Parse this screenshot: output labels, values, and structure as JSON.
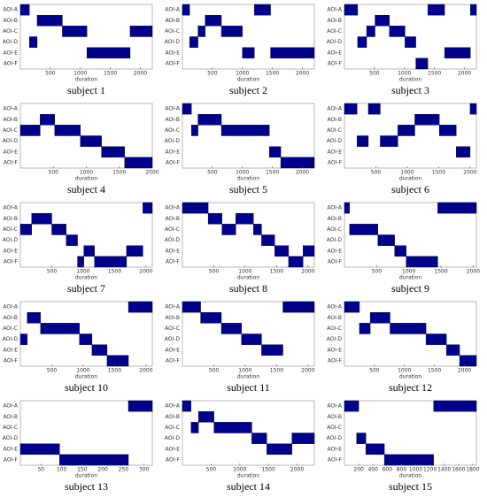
{
  "chart_data": [
    {
      "type": "timeline",
      "title": "subject 1",
      "xlabel": "duration",
      "color": "#00008b",
      "categories": [
        "AOI-A",
        "AOI-B",
        "AOI-C",
        "AOI-D",
        "AOI-E",
        "AOI-F"
      ],
      "xlim": [
        0,
        2200
      ],
      "xticks": [
        500,
        1000,
        1500,
        2000
      ],
      "intervals": [
        [
          [
            0,
            150
          ]
        ],
        [
          [
            280,
            700
          ]
        ],
        [
          [
            700,
            1110
          ],
          [
            1830,
            2200
          ]
        ],
        [
          [
            150,
            280
          ]
        ],
        [
          [
            1110,
            1830
          ]
        ],
        []
      ]
    },
    {
      "type": "timeline",
      "title": "subject 2",
      "xlabel": "duration",
      "color": "#00008b",
      "categories": [
        "AOI-A",
        "AOI-B",
        "AOI-C",
        "AOI-D",
        "AOI-E",
        "AOI-F"
      ],
      "xlim": [
        0,
        2200
      ],
      "xticks": [
        500,
        1000,
        1500,
        2000
      ],
      "intervals": [
        [
          [
            0,
            120
          ],
          [
            1200,
            1470
          ]
        ],
        [
          [
            380,
            650
          ]
        ],
        [
          [
            260,
            380
          ],
          [
            650,
            1000
          ]
        ],
        [
          [
            120,
            260
          ]
        ],
        [
          [
            1000,
            1200
          ],
          [
            1470,
            2200
          ]
        ],
        []
      ]
    },
    {
      "type": "timeline",
      "title": "subject 3",
      "xlabel": "duration",
      "color": "#00008b",
      "categories": [
        "AOI-A",
        "AOI-B",
        "AOI-C",
        "AOI-D",
        "AOI-E",
        "AOI-F"
      ],
      "xlim": [
        0,
        2200
      ],
      "xticks": [
        500,
        1000,
        1500,
        2000
      ],
      "intervals": [
        [
          [
            0,
            220
          ],
          [
            1390,
            1670
          ],
          [
            2100,
            2200
          ]
        ],
        [
          [
            510,
            750
          ]
        ],
        [
          [
            370,
            510
          ],
          [
            750,
            1010
          ]
        ],
        [
          [
            220,
            370
          ],
          [
            1010,
            1190
          ]
        ],
        [
          [
            1670,
            2100
          ]
        ],
        [
          [
            1190,
            1390
          ]
        ]
      ]
    },
    {
      "type": "timeline",
      "title": "subject 4",
      "xlabel": "duration",
      "color": "#00008b",
      "categories": [
        "AOI-A",
        "AOI-B",
        "AOI-C",
        "AOI-D",
        "AOI-E",
        "AOI-F"
      ],
      "xlim": [
        0,
        2000
      ],
      "xticks": [
        500,
        1000,
        1500,
        2000
      ],
      "intervals": [
        [],
        [
          [
            300,
            520
          ]
        ],
        [
          [
            0,
            300
          ],
          [
            520,
            910
          ]
        ],
        [
          [
            910,
            1230
          ]
        ],
        [
          [
            1230,
            1580
          ]
        ],
        [
          [
            1580,
            2000
          ]
        ]
      ]
    },
    {
      "type": "timeline",
      "title": "subject 5",
      "xlabel": "duration",
      "color": "#00008b",
      "categories": [
        "AOI-A",
        "AOI-B",
        "AOI-C",
        "AOI-D",
        "AOI-E",
        "AOI-F"
      ],
      "xlim": [
        0,
        2200
      ],
      "xticks": [
        500,
        1000,
        1500,
        2000
      ],
      "intervals": [
        [
          [
            0,
            150
          ]
        ],
        [
          [
            260,
            650
          ]
        ],
        [
          [
            150,
            260
          ],
          [
            650,
            1450
          ]
        ],
        [],
        [
          [
            1450,
            1640
          ]
        ],
        [
          [
            1640,
            2200
          ]
        ]
      ]
    },
    {
      "type": "timeline",
      "title": "subject 6",
      "xlabel": "duration",
      "color": "#00008b",
      "categories": [
        "AOI-A",
        "AOI-B",
        "AOI-C",
        "AOI-D",
        "AOI-E",
        "AOI-F"
      ],
      "xlim": [
        0,
        2100
      ],
      "xticks": [
        500,
        1000,
        1500,
        2000
      ],
      "intervals": [
        [
          [
            0,
            200
          ],
          [
            380,
            570
          ],
          [
            2000,
            2100
          ]
        ],
        [
          [
            1120,
            1510
          ]
        ],
        [
          [
            850,
            1120
          ],
          [
            1510,
            1780
          ]
        ],
        [
          [
            200,
            380
          ],
          [
            570,
            850
          ]
        ],
        [
          [
            1780,
            2000
          ]
        ],
        []
      ]
    },
    {
      "type": "timeline",
      "title": "subject 7",
      "xlabel": "duration",
      "color": "#00008b",
      "categories": [
        "AOI-A",
        "AOI-B",
        "AOI-C",
        "AOI-D",
        "AOI-E",
        "AOI-F"
      ],
      "xlim": [
        0,
        2100
      ],
      "xticks": [
        500,
        1000,
        1500,
        2000
      ],
      "intervals": [
        [
          [
            1950,
            2100
          ]
        ],
        [
          [
            180,
            500
          ]
        ],
        [
          [
            0,
            180
          ],
          [
            500,
            730
          ]
        ],
        [
          [
            730,
            910
          ]
        ],
        [
          [
            1010,
            1180
          ],
          [
            1690,
            1950
          ]
        ],
        [
          [
            910,
            1010
          ],
          [
            1180,
            1690
          ]
        ]
      ]
    },
    {
      "type": "timeline",
      "title": "subject 8",
      "xlabel": "duration",
      "color": "#00008b",
      "categories": [
        "AOI-A",
        "AOI-B",
        "AOI-C",
        "AOI-D",
        "AOI-E",
        "AOI-F"
      ],
      "xlim": [
        0,
        2100
      ],
      "xticks": [
        500,
        1000,
        1500,
        2000
      ],
      "intervals": [
        [
          [
            0,
            410
          ]
        ],
        [
          [
            410,
            630
          ],
          [
            850,
            1130
          ]
        ],
        [
          [
            630,
            850
          ],
          [
            1130,
            1260
          ]
        ],
        [
          [
            1260,
            1470
          ]
        ],
        [
          [
            1470,
            1690
          ],
          [
            1920,
            2100
          ]
        ],
        [
          [
            1690,
            1920
          ]
        ]
      ]
    },
    {
      "type": "timeline",
      "title": "subject 9",
      "xlabel": "duration",
      "color": "#00008b",
      "categories": [
        "AOI-A",
        "AOI-B",
        "AOI-C",
        "AOI-D",
        "AOI-E",
        "AOI-F"
      ],
      "xlim": [
        0,
        2050
      ],
      "xticks": [
        500,
        1000,
        1500,
        2000
      ],
      "intervals": [
        [
          [
            0,
            80
          ],
          [
            1450,
            2050
          ]
        ],
        [],
        [
          [
            80,
            520
          ]
        ],
        [
          [
            520,
            780
          ]
        ],
        [
          [
            780,
            960
          ]
        ],
        [
          [
            960,
            1450
          ]
        ]
      ]
    },
    {
      "type": "timeline",
      "title": "subject 10",
      "xlabel": "duration",
      "color": "#00008b",
      "categories": [
        "AOI-A",
        "AOI-B",
        "AOI-C",
        "AOI-D",
        "AOI-E",
        "AOI-F"
      ],
      "xlim": [
        0,
        2100
      ],
      "xticks": [
        500,
        1000,
        1500,
        2000
      ],
      "intervals": [
        [
          [
            1720,
            2100
          ]
        ],
        [
          [
            110,
            320
          ]
        ],
        [
          [
            320,
            940
          ]
        ],
        [
          [
            0,
            110
          ],
          [
            940,
            1140
          ]
        ],
        [
          [
            1140,
            1380
          ]
        ],
        [
          [
            1380,
            1720
          ]
        ]
      ]
    },
    {
      "type": "timeline",
      "title": "subject 11",
      "xlabel": "duration",
      "color": "#00008b",
      "categories": [
        "AOI-A",
        "AOI-B",
        "AOI-C",
        "AOI-D",
        "AOI-E",
        "AOI-F"
      ],
      "xlim": [
        0,
        2100
      ],
      "xticks": [
        500,
        1000,
        1500,
        2000
      ],
      "intervals": [
        [
          [
            0,
            290
          ],
          [
            1600,
            2100
          ]
        ],
        [
          [
            290,
            620
          ]
        ],
        [
          [
            620,
            940
          ]
        ],
        [
          [
            940,
            1260
          ]
        ],
        [
          [
            1260,
            1600
          ]
        ],
        []
      ]
    },
    {
      "type": "timeline",
      "title": "subject 12",
      "xlabel": "duration",
      "color": "#00008b",
      "categories": [
        "AOI-A",
        "AOI-B",
        "AOI-C",
        "AOI-D",
        "AOI-E",
        "AOI-F"
      ],
      "xlim": [
        0,
        2200
      ],
      "xticks": [
        500,
        1000,
        1500,
        2000
      ],
      "intervals": [
        [
          [
            0,
            250
          ]
        ],
        [
          [
            430,
            760
          ]
        ],
        [
          [
            250,
            430
          ],
          [
            760,
            1360
          ]
        ],
        [
          [
            1360,
            1700
          ]
        ],
        [
          [
            1700,
            1920
          ]
        ],
        [
          [
            1920,
            2200
          ]
        ]
      ]
    },
    {
      "type": "timeline",
      "title": "subject 13",
      "xlabel": "duration",
      "color": "#00008b",
      "categories": [
        "AOI-A",
        "AOI-B",
        "AOI-C",
        "AOI-D",
        "AOI-E",
        "AOI-F"
      ],
      "xlim": [
        0,
        320
      ],
      "xticks": [
        50,
        100,
        150,
        200,
        250,
        300
      ],
      "intervals": [
        [
          [
            262,
            320
          ]
        ],
        [],
        [],
        [],
        [
          [
            0,
            95
          ]
        ],
        [
          [
            95,
            262
          ]
        ]
      ]
    },
    {
      "type": "timeline",
      "title": "subject 14",
      "xlabel": "duration",
      "color": "#00008b",
      "categories": [
        "AOI-A",
        "AOI-B",
        "AOI-C",
        "AOI-D",
        "AOI-E",
        "AOI-F"
      ],
      "xlim": [
        0,
        2300
      ],
      "xticks": [
        500,
        1000,
        1500,
        2000
      ],
      "intervals": [
        [
          [
            0,
            150
          ]
        ],
        [
          [
            280,
            550
          ]
        ],
        [
          [
            150,
            280
          ],
          [
            550,
            1210
          ]
        ],
        [
          [
            1210,
            1470
          ],
          [
            1910,
            2300
          ]
        ],
        [
          [
            1470,
            1910
          ]
        ],
        []
      ]
    },
    {
      "type": "timeline",
      "title": "subject 15",
      "xlabel": "duration",
      "color": "#00008b",
      "categories": [
        "AOI-A",
        "AOI-B",
        "AOI-C",
        "AOI-D",
        "AOI-E",
        "AOI-F"
      ],
      "xlim": [
        0,
        1850
      ],
      "xticks": [
        200,
        400,
        600,
        800,
        1000,
        1200,
        1400,
        1600,
        1800
      ],
      "intervals": [
        [
          [
            0,
            200
          ],
          [
            1250,
            1850
          ]
        ],
        [],
        [],
        [
          [
            170,
            300
          ]
        ],
        [
          [
            300,
            560
          ]
        ],
        [
          [
            560,
            1250
          ]
        ]
      ]
    }
  ]
}
